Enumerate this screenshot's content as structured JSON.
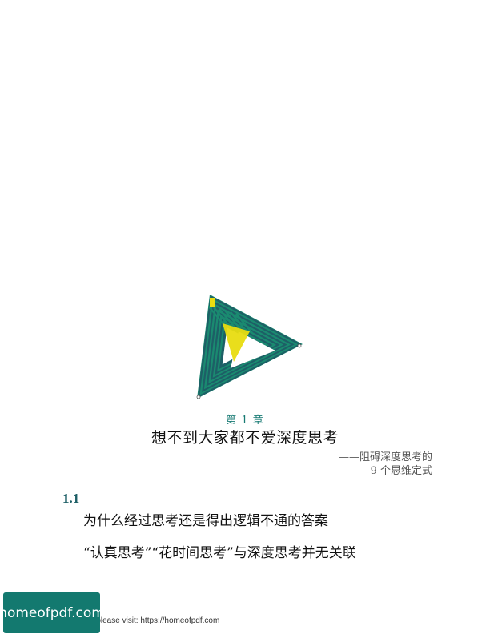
{
  "colors": {
    "accent_teal": "#177a73",
    "accent_dark_teal": "#1d5f66",
    "logo_green": "#1a8a70",
    "logo_yellow": "#e8dc10",
    "badge_bg": "#13796f"
  },
  "logo": {
    "icon": "impossible-triangle-logo-icon"
  },
  "chapter": {
    "label": "第 1 章",
    "title": "想不到大家都不爱深度思考",
    "subtitle_line1": "——阻碍深度思考的",
    "subtitle_line2": "9 个思维定式"
  },
  "section": {
    "number": "1.1",
    "line1": "为什么经过思考还是得出逻辑不通的答案",
    "line2": "“认真思考”“花时间思考”与深度思考并无关联"
  },
  "footer": {
    "text": "e please visit: https://homeofpdf.com",
    "badge_label": "homeofpdf.com"
  }
}
